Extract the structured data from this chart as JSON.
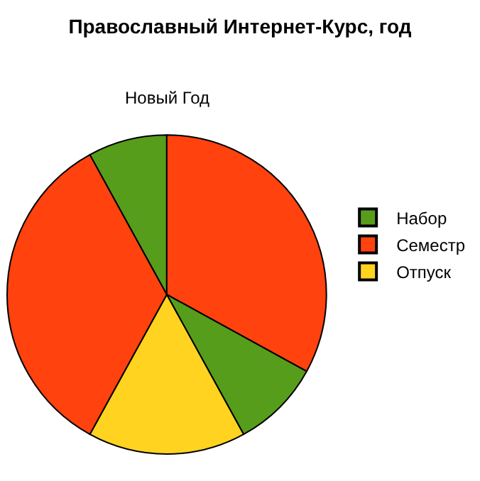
{
  "chart_data": {
    "type": "pie",
    "title": "Православный Интернет-Курс, год",
    "categories": [
      "Набор",
      "Семестр",
      null,
      "Отпуск",
      null
    ],
    "values": [
      8,
      33,
      9,
      16,
      34
    ],
    "colors": [
      "#579d1c",
      "#ff420e",
      "#579d1c",
      "#ffd320",
      "#ff420e"
    ],
    "annotations": [
      "Новый Год"
    ],
    "legend": "right"
  }
}
